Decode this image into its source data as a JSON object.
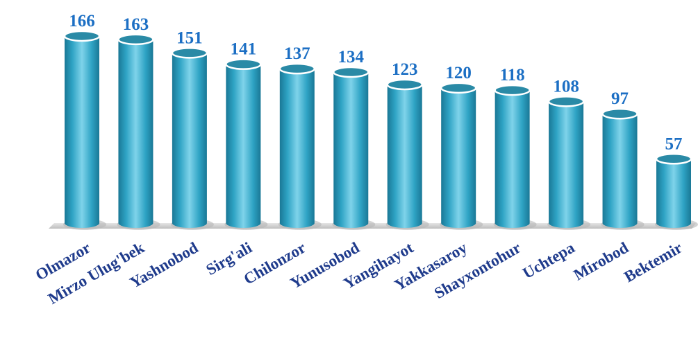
{
  "chart_data": {
    "type": "bar",
    "title": "",
    "xlabel": "",
    "ylabel": "",
    "categories": [
      "Olmazor",
      "Mirzo Ulug'bek",
      "Yashnobod",
      "Sirg'ali",
      "Chilonzor",
      "Yunusobod",
      "Yangihayot",
      "Yakkasaroy",
      "Shayxontohur",
      "Uchtepa",
      "Mirobod",
      "Bektemir"
    ],
    "values": [
      166,
      163,
      151,
      141,
      137,
      134,
      123,
      120,
      118,
      108,
      97,
      57
    ],
    "value_labels": [
      "166",
      "163",
      "151",
      "141",
      "137",
      "134",
      "123",
      "120",
      "118",
      "108",
      "97",
      "57"
    ],
    "ylim": [
      0,
      166
    ],
    "grid": false,
    "legend": "none",
    "bar_style": "3d-cylinder"
  },
  "colors": {
    "bar": "#2ea3c4",
    "bar_highlight": "#7fd3ea",
    "bar_shadow": "#1a7896",
    "bar_top": "#2a8aa6",
    "value_label": "#1c6fc4",
    "category_label": "#1f3b8c",
    "floor": "#d9d9d9"
  }
}
